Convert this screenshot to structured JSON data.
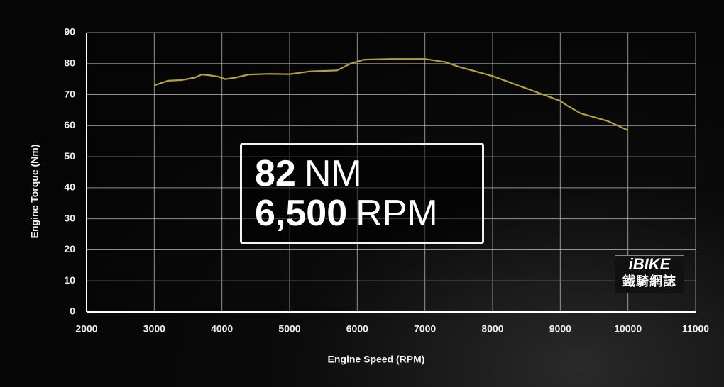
{
  "chart_data": {
    "type": "line",
    "x_label": "Engine Speed (RPM)",
    "y_label": "Engine Torque (Nm)",
    "x": [
      3000,
      3200,
      3400,
      3600,
      3700,
      3800,
      3950,
      4050,
      4200,
      4400,
      4700,
      5000,
      5300,
      5700,
      5900,
      6100,
      6500,
      7000,
      7300,
      7500,
      8000,
      8500,
      9000,
      9100,
      9300,
      9700,
      10000
    ],
    "values": [
      73,
      74.5,
      74.7,
      75.5,
      76.5,
      76.3,
      75.8,
      75,
      75.5,
      76.5,
      76.7,
      76.6,
      77.5,
      77.8,
      80,
      81.3,
      81.5,
      81.5,
      80.5,
      79,
      76,
      72,
      68,
      66.5,
      64,
      61.5,
      58.5
    ],
    "color": "#b3a23a",
    "xlim": [
      2000,
      11000
    ],
    "xticks": [
      2000,
      3000,
      4000,
      5000,
      6000,
      7000,
      8000,
      9000,
      10000,
      11000
    ],
    "ylim": [
      0,
      90
    ],
    "yticks": [
      0,
      10,
      20,
      30,
      40,
      50,
      60,
      70,
      80,
      90
    ],
    "grid": true,
    "annotation": {
      "torque_value": "82",
      "torque_unit": "NM",
      "speed_value": "6,500",
      "speed_unit": "RPM"
    },
    "logo": {
      "brand": "iBIKE",
      "name": "鐵騎網誌"
    }
  }
}
